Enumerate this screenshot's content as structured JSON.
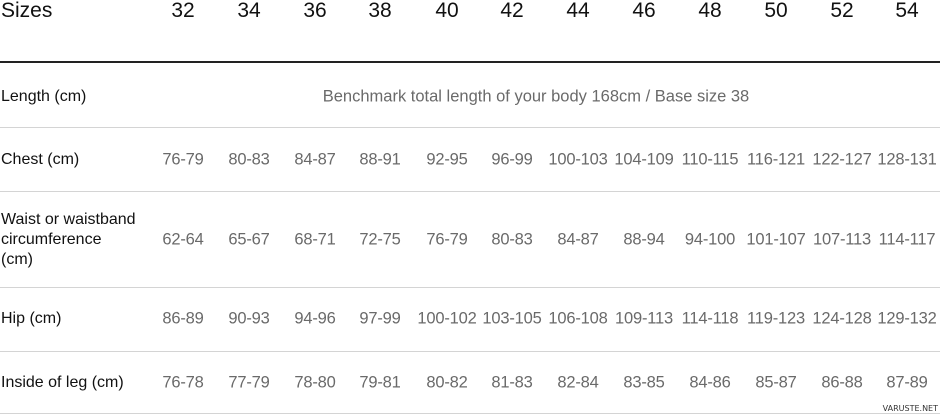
{
  "header": {
    "label": "Sizes",
    "sizes": [
      "32",
      "34",
      "36",
      "38",
      "40",
      "42",
      "44",
      "46",
      "48",
      "50",
      "52",
      "54"
    ]
  },
  "rows": [
    {
      "label": "Length (cm)",
      "note": "Benchmark total length of your body 168cm / Base size 38"
    },
    {
      "label": "Chest (cm)",
      "values": [
        "76-79",
        "80-83",
        "84-87",
        "88-91",
        "92-95",
        "96-99",
        "100-103",
        "104-109",
        "110-115",
        "116-121",
        "122-127",
        "128-131"
      ]
    },
    {
      "label_lines": [
        "Waist or waistband",
        "circumference",
        "(cm)"
      ],
      "values": [
        "62-64",
        "65-67",
        "68-71",
        "72-75",
        "76-79",
        "80-83",
        "84-87",
        "88-94",
        "94-100",
        "101-107",
        "107-113",
        "114-117"
      ]
    },
    {
      "label": "Hip (cm)",
      "values": [
        "86-89",
        "90-93",
        "94-96",
        "97-99",
        "100-102",
        "103-105",
        "106-108",
        "109-113",
        "114-118",
        "119-123",
        "124-128",
        "129-132"
      ]
    },
    {
      "label": "Inside of leg (cm)",
      "values": [
        "76-78",
        "77-79",
        "78-80",
        "79-81",
        "80-82",
        "81-83",
        "82-84",
        "83-85",
        "84-86",
        "85-87",
        "86-88",
        "87-89"
      ]
    }
  ],
  "watermark": "VARUSTE.NET"
}
